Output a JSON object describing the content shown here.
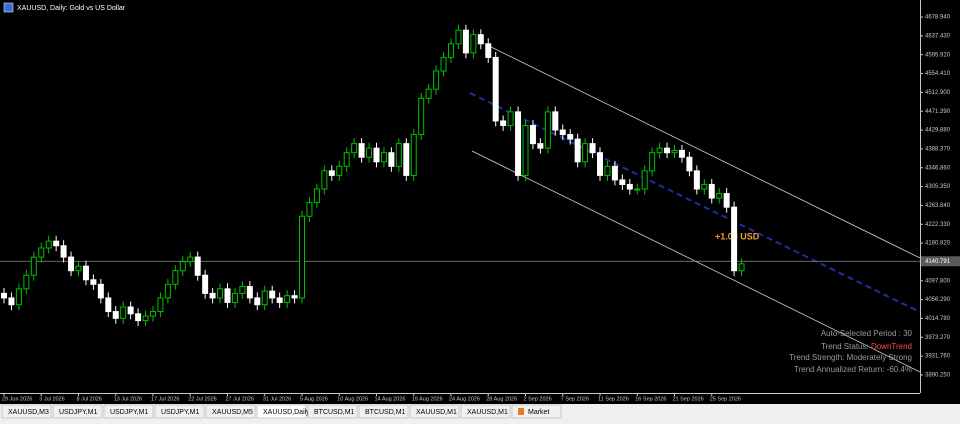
{
  "chart_data": {
    "type": "candlestick",
    "title": "XAUUSD, Daily:  Gold vs US Dollar",
    "up_color": "#00c000",
    "down_color": "#ffffff",
    "categories": [
      "29 Jun 2026",
      null,
      null,
      null,
      null,
      "3 Jul 2026",
      null,
      null,
      null,
      null,
      "8 Jul 2026",
      null,
      null,
      null,
      null,
      "13 Jul 2026",
      null,
      null,
      null,
      null,
      "17 Jul 2026",
      null,
      null,
      null,
      null,
      "22 Jul 2026",
      null,
      null,
      null,
      null,
      "27 Jul 2026",
      null,
      null,
      null,
      null,
      "31 Jul 2026",
      null,
      null,
      null,
      null,
      "5 Aug 2026",
      null,
      null,
      null,
      null,
      "10 Aug 2026",
      null,
      null,
      null,
      null,
      "14 Aug 2026",
      null,
      null,
      null,
      null,
      "19 Aug 2026",
      null,
      null,
      null,
      null,
      "24 Aug 2026",
      null,
      null,
      null,
      null,
      "28 Aug 2026",
      null,
      null,
      null,
      null,
      "2 Sep 2026",
      null,
      null,
      null,
      null,
      "7 Sep 2026",
      null,
      null,
      null,
      null,
      "11 Sep 2026",
      null,
      null,
      null,
      null,
      "16 Sep 2026",
      null,
      null,
      null,
      null,
      "21 Sep 2026",
      null,
      null,
      null,
      null,
      "25 Sep 2026",
      null,
      null,
      null,
      null
    ],
    "open": [
      4070,
      4060,
      4045,
      4080,
      4110,
      4150,
      4170,
      4185,
      4175,
      4150,
      4120,
      4130,
      4100,
      4090,
      4060,
      4030,
      4015,
      4040,
      4025,
      4010,
      4020,
      4030,
      4060,
      4090,
      4120,
      4140,
      4150,
      4110,
      4070,
      4060,
      4080,
      4050,
      4070,
      4085,
      4060,
      4045,
      4075,
      4060,
      4050,
      4065,
      4060,
      4240,
      4270,
      4300,
      4340,
      4330,
      4350,
      4380,
      4400,
      4370,
      4390,
      4360,
      4380,
      4350,
      4400,
      4330,
      4420,
      4500,
      4520,
      4560,
      4590,
      4620,
      4650,
      4600,
      4640,
      4620,
      4590,
      4450,
      4440,
      4470,
      4330,
      4440,
      4400,
      4390,
      4470,
      4430,
      4420,
      4410,
      4360,
      4400,
      4380,
      4330,
      4350,
      4320,
      4310,
      4300,
      4300,
      4340,
      4380,
      4390,
      4380,
      4385,
      4370,
      4340,
      4300,
      4310,
      4280,
      4290,
      4260,
      4120
    ],
    "high": [
      4082,
      4072,
      4092,
      4122,
      4162,
      4182,
      4197,
      4197,
      4187,
      4162,
      4142,
      4142,
      4112,
      4102,
      4072,
      4042,
      4052,
      4052,
      4037,
      4032,
      4042,
      4072,
      4102,
      4132,
      4152,
      4162,
      4162,
      4122,
      4082,
      4092,
      4092,
      4082,
      4097,
      4097,
      4072,
      4087,
      4087,
      4072,
      4077,
      4077,
      4252,
      4282,
      4312,
      4352,
      4352,
      4362,
      4392,
      4412,
      4412,
      4402,
      4402,
      4392,
      4392,
      4412,
      4412,
      4432,
      4512,
      4532,
      4572,
      4602,
      4632,
      4662,
      4662,
      4652,
      4652,
      4632,
      4602,
      4462,
      4482,
      4482,
      4452,
      4452,
      4412,
      4482,
      4482,
      4442,
      4432,
      4422,
      4412,
      4412,
      4392,
      4362,
      4362,
      4332,
      4322,
      4312,
      4352,
      4392,
      4402,
      4402,
      4397,
      4397,
      4382,
      4352,
      4322,
      4322,
      4302,
      4302,
      4272,
      4147
    ],
    "low": [
      4048,
      4033,
      4033,
      4068,
      4098,
      4138,
      4158,
      4163,
      4138,
      4108,
      4108,
      4088,
      4078,
      4048,
      4018,
      4003,
      4003,
      4013,
      3998,
      3998,
      4008,
      4018,
      4048,
      4078,
      4108,
      4128,
      4098,
      4058,
      4048,
      4048,
      4038,
      4038,
      4058,
      4048,
      4033,
      4033,
      4048,
      4038,
      4038,
      4048,
      4048,
      4228,
      4258,
      4288,
      4318,
      4318,
      4338,
      4368,
      4358,
      4358,
      4348,
      4348,
      4338,
      4338,
      4318,
      4318,
      4408,
      4488,
      4508,
      4548,
      4578,
      4608,
      4588,
      4588,
      4608,
      4578,
      4438,
      4428,
      4428,
      4318,
      4318,
      4388,
      4378,
      4378,
      4418,
      4408,
      4398,
      4348,
      4348,
      4368,
      4318,
      4318,
      4308,
      4298,
      4288,
      4288,
      4288,
      4328,
      4368,
      4368,
      4368,
      4358,
      4328,
      4288,
      4288,
      4268,
      4268,
      4248,
      4108,
      4108
    ],
    "close": [
      4060,
      4045,
      4080,
      4110,
      4150,
      4170,
      4185,
      4175,
      4150,
      4120,
      4130,
      4100,
      4090,
      4060,
      4030,
      4015,
      4040,
      4025,
      4010,
      4020,
      4030,
      4060,
      4090,
      4120,
      4140,
      4150,
      4110,
      4070,
      4060,
      4080,
      4050,
      4070,
      4085,
      4060,
      4045,
      4075,
      4060,
      4050,
      4065,
      4060,
      4240,
      4270,
      4300,
      4340,
      4330,
      4350,
      4380,
      4400,
      4370,
      4390,
      4360,
      4380,
      4350,
      4400,
      4330,
      4420,
      4500,
      4520,
      4560,
      4590,
      4620,
      4650,
      4600,
      4640,
      4620,
      4590,
      4450,
      4440,
      4470,
      4330,
      4440,
      4400,
      4390,
      4470,
      4430,
      4420,
      4410,
      4360,
      4400,
      4380,
      4330,
      4350,
      4320,
      4310,
      4300,
      4300,
      4340,
      4380,
      4390,
      4380,
      4385,
      4370,
      4340,
      4300,
      4310,
      4280,
      4290,
      4260,
      4120,
      4135
    ],
    "ylim": [
      3850.5,
      4716.5
    ],
    "yticks": [
      {
        "value": 4678.94,
        "label": "4678.940"
      },
      {
        "value": 4637.43,
        "label": "4637.430"
      },
      {
        "value": 4595.92,
        "label": "4595.920"
      },
      {
        "value": 4554.41,
        "label": "4554.410"
      },
      {
        "value": 4512.9,
        "label": "4512.900"
      },
      {
        "value": 4471.39,
        "label": "4471.390"
      },
      {
        "value": 4429.88,
        "label": "4429.880"
      },
      {
        "value": 4388.37,
        "label": "4388.370"
      },
      {
        "value": 4346.86,
        "label": "4346.860"
      },
      {
        "value": 4305.35,
        "label": "4305.350"
      },
      {
        "value": 4263.84,
        "label": "4263.840"
      },
      {
        "value": 4222.33,
        "label": "4222.330"
      },
      {
        "value": 4180.82,
        "label": "4180.820"
      },
      {
        "value": 4097.8,
        "label": "4097.800"
      },
      {
        "value": 4056.29,
        "label": "4056.290"
      },
      {
        "value": 4014.78,
        "label": "4014.780"
      },
      {
        "value": 3973.27,
        "label": "3973.270"
      },
      {
        "value": 3931.76,
        "label": "3931.760"
      },
      {
        "value": 3890.25,
        "label": "3890.250"
      }
    ],
    "current_price": 4140.791,
    "grid": false,
    "annotation": "+1.00 USD",
    "info": {
      "period": "Auto-Selected Period : 30",
      "status_label": "Trend Status: ",
      "status_value": "DownTrend",
      "strength": "Trend Strength: Moderately Strong",
      "return": "Trend Annualized Return: -60.4%"
    }
  },
  "tabs": [
    "XAUUSD,M3",
    "USDJPY,M1",
    "USDJPY,M1",
    "USDJPY,M1",
    "XAUUSD,M5",
    "XAUUSD,Daily",
    "BTCUSD,M1",
    "BTCUSD,M1",
    "XAUUSD,M1",
    "XAUUSD,M1",
    "Market"
  ],
  "active_tab": 5
}
